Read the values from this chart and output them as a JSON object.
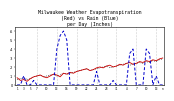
{
  "title": "Milwaukee Weather Evapotranspiration\n(Red) vs Rain (Blue)\nper Day (Inches)",
  "title_fontsize": 3.5,
  "red_values": [
    0.08,
    0.05,
    0.06,
    0.04,
    0.07,
    0.09,
    0.1,
    0.11,
    0.09,
    0.08,
    0.1,
    0.12,
    0.11,
    0.09,
    0.13,
    0.12,
    0.14,
    0.13,
    0.15,
    0.16,
    0.17,
    0.18,
    0.16,
    0.17,
    0.19,
    0.2,
    0.19,
    0.21,
    0.22,
    0.2,
    0.21,
    0.23,
    0.22,
    0.24,
    0.25,
    0.23,
    0.24,
    0.26,
    0.25,
    0.27,
    0.26,
    0.28,
    0.27,
    0.29,
    0.3
  ],
  "blue_values": [
    0.0,
    0.0,
    0.1,
    0.0,
    0.0,
    0.05,
    0.0,
    0.0,
    0.0,
    0.0,
    0.0,
    0.0,
    0.4,
    0.55,
    0.6,
    0.5,
    0.0,
    0.0,
    0.0,
    0.0,
    0.0,
    0.0,
    0.0,
    0.0,
    0.15,
    0.0,
    0.0,
    0.0,
    0.0,
    0.05,
    0.0,
    0.0,
    0.0,
    0.0,
    0.35,
    0.4,
    0.0,
    0.0,
    0.0,
    0.4,
    0.35,
    0.0,
    0.1,
    0.0,
    0.0
  ],
  "black_values": [
    0.06,
    0.07,
    0.08,
    0.06,
    0.07,
    0.09,
    0.1,
    0.11,
    0.09,
    0.1,
    0.11,
    0.12,
    0.1,
    0.11,
    0.13,
    0.12,
    0.13,
    0.14,
    0.15,
    0.16,
    0.17,
    0.18,
    0.16,
    0.17,
    0.18,
    0.19,
    0.2,
    0.21,
    0.19,
    0.2,
    0.21,
    0.22,
    0.23,
    0.24,
    0.22,
    0.23,
    0.24,
    0.25,
    0.24,
    0.26,
    0.25,
    0.27,
    0.26,
    0.28,
    0.29
  ],
  "x_tick_positions": [
    0,
    2,
    4,
    6,
    9,
    12,
    15,
    18,
    21,
    24,
    27,
    30,
    33,
    36,
    39,
    42,
    44
  ],
  "x_tick_labels": [
    "1",
    "3",
    "5",
    "7",
    "10",
    "13",
    "16",
    "19",
    "22",
    "25",
    "28",
    "31",
    "4",
    "7",
    "10",
    "13",
    "n"
  ],
  "ylim": [
    0,
    0.65
  ],
  "yticks": [
    0.0,
    0.1,
    0.2,
    0.3,
    0.4,
    0.5,
    0.6
  ],
  "ytick_labels": [
    "0",
    ".1",
    ".2",
    ".3",
    ".4",
    ".5",
    ".6"
  ],
  "vline_positions": [
    6,
    12,
    18,
    24,
    30,
    36,
    42
  ],
  "background_color": "#ffffff",
  "red_color": "#cc0000",
  "blue_color": "#0000cc",
  "black_color": "#000000"
}
